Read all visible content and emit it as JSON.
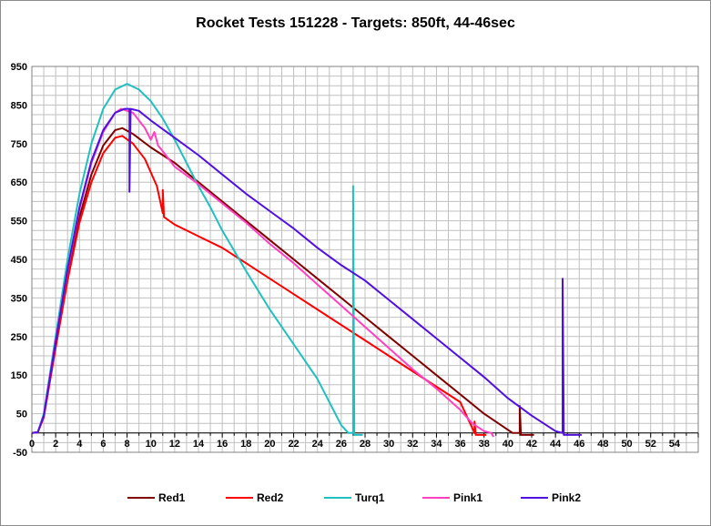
{
  "chart_data": {
    "type": "line",
    "title": "Rocket Tests 151228 - Targets: 850ft, 44-46sec",
    "xlabel": "",
    "ylabel": "",
    "xlim": [
      0,
      56
    ],
    "ylim": [
      -50,
      950
    ],
    "x_ticks": [
      0,
      2,
      4,
      6,
      8,
      10,
      12,
      14,
      16,
      18,
      20,
      22,
      24,
      26,
      28,
      30,
      32,
      34,
      36,
      38,
      40,
      42,
      44,
      46,
      48,
      50,
      52,
      54
    ],
    "y_ticks": [
      -50,
      50,
      150,
      250,
      350,
      450,
      550,
      650,
      750,
      850,
      950
    ],
    "grid": true,
    "legend_position": "bottom",
    "series": [
      {
        "name": "Red1",
        "color": "#800000",
        "points": [
          [
            0,
            0
          ],
          [
            0.5,
            2
          ],
          [
            1,
            45
          ],
          [
            2,
            230
          ],
          [
            3,
            410
          ],
          [
            4,
            560
          ],
          [
            5,
            670
          ],
          [
            6,
            745
          ],
          [
            7,
            785
          ],
          [
            7.6,
            790
          ],
          [
            8.5,
            775
          ],
          [
            10,
            740
          ],
          [
            12,
            700
          ],
          [
            14,
            650
          ],
          [
            16,
            600
          ],
          [
            18,
            550
          ],
          [
            20,
            500
          ],
          [
            22,
            450
          ],
          [
            24,
            400
          ],
          [
            26,
            350
          ],
          [
            28,
            300
          ],
          [
            30,
            250
          ],
          [
            32,
            200
          ],
          [
            34,
            150
          ],
          [
            36,
            100
          ],
          [
            38,
            50
          ],
          [
            40.4,
            0
          ],
          [
            41,
            0
          ],
          [
            41,
            70
          ],
          [
            41.1,
            -5
          ],
          [
            42.2,
            -5
          ]
        ]
      },
      {
        "name": "Red2",
        "color": "#ff0000",
        "points": [
          [
            0,
            0
          ],
          [
            0.5,
            2
          ],
          [
            1,
            40
          ],
          [
            2,
            220
          ],
          [
            3,
            395
          ],
          [
            4,
            545
          ],
          [
            5,
            650
          ],
          [
            6,
            725
          ],
          [
            7,
            765
          ],
          [
            7.6,
            770
          ],
          [
            8.5,
            750
          ],
          [
            9.5,
            710
          ],
          [
            10.5,
            640
          ],
          [
            11,
            570
          ],
          [
            11,
            630
          ],
          [
            11.1,
            560
          ],
          [
            12,
            540
          ],
          [
            14,
            510
          ],
          [
            16,
            480
          ],
          [
            18,
            440
          ],
          [
            20,
            400
          ],
          [
            22,
            360
          ],
          [
            24,
            320
          ],
          [
            26,
            280
          ],
          [
            28,
            240
          ],
          [
            30,
            200
          ],
          [
            32,
            160
          ],
          [
            34,
            120
          ],
          [
            36,
            80
          ],
          [
            37.2,
            0
          ],
          [
            37.2,
            30
          ],
          [
            37.3,
            -5
          ],
          [
            38.2,
            -5
          ]
        ]
      },
      {
        "name": "Turq1",
        "color": "#20c0c0",
        "points": [
          [
            0,
            0
          ],
          [
            0.5,
            2
          ],
          [
            1,
            50
          ],
          [
            2,
            250
          ],
          [
            3,
            450
          ],
          [
            4,
            620
          ],
          [
            5,
            750
          ],
          [
            6,
            840
          ],
          [
            7,
            890
          ],
          [
            8,
            905
          ],
          [
            9,
            890
          ],
          [
            10,
            860
          ],
          [
            11,
            815
          ],
          [
            12,
            760
          ],
          [
            13,
            700
          ],
          [
            14,
            640
          ],
          [
            15,
            585
          ],
          [
            16,
            525
          ],
          [
            18,
            420
          ],
          [
            20,
            320
          ],
          [
            22,
            230
          ],
          [
            24,
            140
          ],
          [
            25,
            80
          ],
          [
            26,
            20
          ],
          [
            26.6,
            0
          ],
          [
            27,
            0
          ],
          [
            27,
            640
          ],
          [
            27.1,
            -5
          ],
          [
            27.8,
            -5
          ]
        ]
      },
      {
        "name": "Pink1",
        "color": "#ff40c0",
        "points": [
          [
            0,
            0
          ],
          [
            0.5,
            2
          ],
          [
            1,
            45
          ],
          [
            2,
            240
          ],
          [
            3,
            420
          ],
          [
            4,
            580
          ],
          [
            5,
            700
          ],
          [
            6,
            780
          ],
          [
            7,
            830
          ],
          [
            7.5,
            840
          ],
          [
            8.5,
            830
          ],
          [
            9.5,
            790
          ],
          [
            10,
            760
          ],
          [
            10.3,
            780
          ],
          [
            10.6,
            745
          ],
          [
            11,
            730
          ],
          [
            12,
            690
          ],
          [
            14,
            645
          ],
          [
            16,
            595
          ],
          [
            18,
            545
          ],
          [
            20,
            490
          ],
          [
            22,
            440
          ],
          [
            24,
            385
          ],
          [
            26,
            330
          ],
          [
            28,
            275
          ],
          [
            30,
            220
          ],
          [
            32,
            165
          ],
          [
            34,
            115
          ],
          [
            36,
            60
          ],
          [
            37,
            25
          ],
          [
            38,
            5
          ],
          [
            38.6,
            0
          ],
          [
            38.8,
            -10
          ]
        ]
      },
      {
        "name": "Pink2",
        "color": "#5010e0",
        "points": [
          [
            0,
            0
          ],
          [
            0.5,
            2
          ],
          [
            1,
            45
          ],
          [
            2,
            235
          ],
          [
            3,
            425
          ],
          [
            4,
            585
          ],
          [
            5,
            705
          ],
          [
            6,
            785
          ],
          [
            7,
            830
          ],
          [
            7.8,
            840
          ],
          [
            8.2,
            840
          ],
          [
            8.2,
            625
          ],
          [
            8.3,
            840
          ],
          [
            9,
            835
          ],
          [
            10,
            810
          ],
          [
            12,
            765
          ],
          [
            14,
            720
          ],
          [
            16,
            670
          ],
          [
            18,
            620
          ],
          [
            20,
            575
          ],
          [
            22,
            530
          ],
          [
            24,
            480
          ],
          [
            26,
            435
          ],
          [
            28,
            395
          ],
          [
            30,
            345
          ],
          [
            32,
            295
          ],
          [
            34,
            245
          ],
          [
            36,
            195
          ],
          [
            38,
            145
          ],
          [
            40,
            90
          ],
          [
            42,
            45
          ],
          [
            44,
            5
          ],
          [
            44.6,
            0
          ],
          [
            44.6,
            400
          ],
          [
            44.7,
            -5
          ],
          [
            46.2,
            -5
          ]
        ]
      }
    ]
  }
}
